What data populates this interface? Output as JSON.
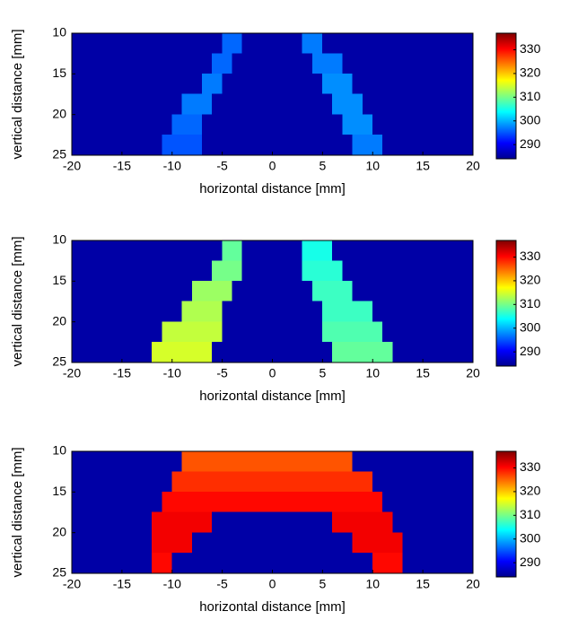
{
  "chart_data": [
    {
      "type": "heatmap",
      "colormap": "jet",
      "y_inverted": true,
      "xlabel": "horizontal distance [mm]",
      "ylabel": "vertical distance [mm]",
      "xlim": [
        -20,
        20
      ],
      "ylim": [
        10,
        25
      ],
      "xticks": [
        -20,
        -15,
        -10,
        -5,
        0,
        5,
        10,
        15,
        20
      ],
      "yticks": [
        10,
        15,
        20,
        25
      ],
      "clim": [
        284,
        337
      ],
      "cticks": [
        290,
        300,
        310,
        320,
        330
      ],
      "x": [
        -19.5,
        -18.5,
        -17.5,
        -16.5,
        -15.5,
        -14.5,
        -13.5,
        -12.5,
        -11.5,
        -10.5,
        -9.5,
        -8.5,
        -7.5,
        -6.5,
        -5.5,
        -4.5,
        -3.5,
        -2.5,
        -1.5,
        -0.5,
        0.5,
        1.5,
        2.5,
        3.5,
        4.5,
        5.5,
        6.5,
        7.5,
        8.5,
        9.5,
        10.5,
        11.5,
        12.5,
        13.5,
        14.5,
        15.5,
        16.5,
        17.5,
        18.5,
        19.5
      ],
      "y": [
        11.25,
        13.75,
        16.25,
        18.75,
        21.25,
        23.75
      ],
      "z": [
        [
          286,
          286,
          286,
          286,
          286,
          286,
          286,
          286,
          286,
          286,
          286,
          286,
          286,
          286,
          286,
          296,
          296,
          286,
          286,
          286,
          286,
          286,
          286,
          297,
          297,
          286,
          286,
          286,
          286,
          286,
          286,
          286,
          286,
          286,
          286,
          286,
          286,
          286,
          286,
          286
        ],
        [
          286,
          286,
          286,
          286,
          286,
          286,
          286,
          286,
          286,
          286,
          286,
          286,
          286,
          286,
          296,
          296,
          286,
          286,
          286,
          286,
          286,
          286,
          286,
          286,
          297,
          297,
          297,
          286,
          286,
          286,
          286,
          286,
          286,
          286,
          286,
          286,
          286,
          286,
          286,
          286
        ],
        [
          286,
          286,
          286,
          286,
          286,
          286,
          286,
          286,
          286,
          286,
          286,
          286,
          286,
          297,
          297,
          286,
          286,
          286,
          286,
          286,
          286,
          286,
          286,
          286,
          286,
          298,
          298,
          298,
          286,
          286,
          286,
          286,
          286,
          286,
          286,
          286,
          286,
          286,
          286,
          286
        ],
        [
          286,
          286,
          286,
          286,
          286,
          286,
          286,
          286,
          286,
          286,
          286,
          297,
          297,
          297,
          286,
          286,
          286,
          286,
          286,
          286,
          286,
          286,
          286,
          286,
          286,
          286,
          298,
          298,
          298,
          286,
          286,
          286,
          286,
          286,
          286,
          286,
          286,
          286,
          286,
          286
        ],
        [
          286,
          286,
          286,
          286,
          286,
          286,
          286,
          286,
          286,
          286,
          296,
          296,
          296,
          286,
          286,
          286,
          286,
          286,
          286,
          286,
          286,
          286,
          286,
          286,
          286,
          286,
          286,
          298,
          298,
          298,
          286,
          286,
          286,
          286,
          286,
          286,
          286,
          286,
          286,
          286
        ],
        [
          286,
          286,
          286,
          286,
          286,
          286,
          286,
          286,
          286,
          295,
          295,
          295,
          295,
          286,
          286,
          286,
          286,
          286,
          286,
          286,
          286,
          286,
          286,
          286,
          286,
          286,
          286,
          286,
          297,
          297,
          297,
          286,
          286,
          286,
          286,
          286,
          286,
          286,
          286,
          286
        ]
      ]
    },
    {
      "type": "heatmap",
      "colormap": "jet",
      "y_inverted": true,
      "xlabel": "horizontal distance [mm]",
      "ylabel": "vertical distance [mm]",
      "xlim": [
        -20,
        20
      ],
      "ylim": [
        10,
        25
      ],
      "xticks": [
        -20,
        -15,
        -10,
        -5,
        0,
        5,
        10,
        15,
        20
      ],
      "yticks": [
        10,
        15,
        20,
        25
      ],
      "clim": [
        284,
        337
      ],
      "cticks": [
        290,
        300,
        310,
        320,
        330
      ],
      "x": [
        -19.5,
        -18.5,
        -17.5,
        -16.5,
        -15.5,
        -14.5,
        -13.5,
        -12.5,
        -11.5,
        -10.5,
        -9.5,
        -8.5,
        -7.5,
        -6.5,
        -5.5,
        -4.5,
        -3.5,
        -2.5,
        -1.5,
        -0.5,
        0.5,
        1.5,
        2.5,
        3.5,
        4.5,
        5.5,
        6.5,
        7.5,
        8.5,
        9.5,
        10.5,
        11.5,
        12.5,
        13.5,
        14.5,
        15.5,
        16.5,
        17.5,
        18.5,
        19.5
      ],
      "y": [
        11.25,
        13.75,
        16.25,
        18.75,
        21.25,
        23.75
      ],
      "z": [
        [
          286,
          286,
          286,
          286,
          286,
          286,
          286,
          286,
          286,
          286,
          286,
          286,
          286,
          286,
          286,
          309,
          309,
          286,
          286,
          286,
          286,
          286,
          286,
          305,
          305,
          305,
          286,
          286,
          286,
          286,
          286,
          286,
          286,
          286,
          286,
          286,
          286,
          286,
          286,
          286
        ],
        [
          286,
          286,
          286,
          286,
          286,
          286,
          286,
          286,
          286,
          286,
          286,
          286,
          286,
          286,
          310,
          310,
          310,
          286,
          286,
          286,
          286,
          286,
          286,
          306,
          306,
          306,
          306,
          286,
          286,
          286,
          286,
          286,
          286,
          286,
          286,
          286,
          286,
          286,
          286,
          286
        ],
        [
          286,
          286,
          286,
          286,
          286,
          286,
          286,
          286,
          286,
          286,
          286,
          286,
          312,
          312,
          312,
          312,
          286,
          286,
          286,
          286,
          286,
          286,
          286,
          286,
          307,
          307,
          307,
          307,
          286,
          286,
          286,
          286,
          286,
          286,
          286,
          286,
          286,
          286,
          286,
          286
        ],
        [
          286,
          286,
          286,
          286,
          286,
          286,
          286,
          286,
          286,
          286,
          286,
          313,
          313,
          313,
          313,
          286,
          286,
          286,
          286,
          286,
          286,
          286,
          286,
          286,
          286,
          307,
          307,
          307,
          307,
          307,
          286,
          286,
          286,
          286,
          286,
          286,
          286,
          286,
          286,
          286
        ],
        [
          286,
          286,
          286,
          286,
          286,
          286,
          286,
          286,
          286,
          314,
          314,
          314,
          314,
          314,
          314,
          286,
          286,
          286,
          286,
          286,
          286,
          286,
          286,
          286,
          286,
          308,
          308,
          308,
          308,
          308,
          308,
          286,
          286,
          286,
          286,
          286,
          286,
          286,
          286,
          286
        ],
        [
          286,
          286,
          286,
          286,
          286,
          286,
          286,
          286,
          315,
          315,
          315,
          315,
          315,
          315,
          286,
          286,
          286,
          286,
          286,
          286,
          286,
          286,
          286,
          286,
          286,
          286,
          309,
          309,
          309,
          309,
          309,
          309,
          286,
          286,
          286,
          286,
          286,
          286,
          286,
          286
        ]
      ]
    },
    {
      "type": "heatmap",
      "colormap": "jet",
      "y_inverted": true,
      "xlabel": "horizontal distance [mm]",
      "ylabel": "vertical distance [mm]",
      "xlim": [
        -20,
        20
      ],
      "ylim": [
        10,
        25
      ],
      "xticks": [
        -20,
        -15,
        -10,
        -5,
        0,
        5,
        10,
        15,
        20
      ],
      "yticks": [
        10,
        15,
        20,
        25
      ],
      "clim": [
        284,
        337
      ],
      "cticks": [
        290,
        300,
        310,
        320,
        330
      ],
      "x": [
        -19.5,
        -18.5,
        -17.5,
        -16.5,
        -15.5,
        -14.5,
        -13.5,
        -12.5,
        -11.5,
        -10.5,
        -9.5,
        -8.5,
        -7.5,
        -6.5,
        -5.5,
        -4.5,
        -3.5,
        -2.5,
        -1.5,
        -0.5,
        0.5,
        1.5,
        2.5,
        3.5,
        4.5,
        5.5,
        6.5,
        7.5,
        8.5,
        9.5,
        10.5,
        11.5,
        12.5,
        13.5,
        14.5,
        15.5,
        16.5,
        17.5,
        18.5,
        19.5
      ],
      "y": [
        11.25,
        13.75,
        16.25,
        18.75,
        21.25,
        23.75
      ],
      "z": [
        [
          286,
          286,
          286,
          286,
          286,
          286,
          286,
          286,
          286,
          286,
          286,
          326,
          326,
          326,
          326,
          326,
          326,
          326,
          326,
          326,
          326,
          326,
          326,
          326,
          326,
          326,
          326,
          326,
          286,
          286,
          286,
          286,
          286,
          286,
          286,
          286,
          286,
          286,
          286,
          286
        ],
        [
          286,
          286,
          286,
          286,
          286,
          286,
          286,
          286,
          286,
          286,
          328,
          328,
          328,
          328,
          328,
          328,
          328,
          328,
          328,
          328,
          328,
          328,
          328,
          328,
          328,
          328,
          328,
          328,
          328,
          328,
          286,
          286,
          286,
          286,
          286,
          286,
          286,
          286,
          286,
          286
        ],
        [
          286,
          286,
          286,
          286,
          286,
          286,
          286,
          286,
          286,
          330,
          330,
          330,
          330,
          330,
          330,
          330,
          330,
          330,
          330,
          330,
          330,
          330,
          330,
          330,
          330,
          330,
          330,
          330,
          330,
          330,
          330,
          286,
          286,
          286,
          286,
          286,
          286,
          286,
          286,
          286
        ],
        [
          286,
          286,
          286,
          286,
          286,
          286,
          286,
          286,
          331,
          331,
          331,
          331,
          331,
          331,
          286,
          286,
          286,
          286,
          286,
          286,
          286,
          286,
          286,
          286,
          286,
          286,
          331,
          331,
          331,
          331,
          331,
          331,
          286,
          286,
          286,
          286,
          286,
          286,
          286,
          286
        ],
        [
          286,
          286,
          286,
          286,
          286,
          286,
          286,
          286,
          331,
          331,
          331,
          331,
          286,
          286,
          286,
          286,
          286,
          286,
          286,
          286,
          286,
          286,
          286,
          286,
          286,
          286,
          286,
          286,
          331,
          331,
          331,
          331,
          331,
          286,
          286,
          286,
          286,
          286,
          286,
          286
        ],
        [
          286,
          286,
          286,
          286,
          286,
          286,
          286,
          286,
          330,
          330,
          286,
          286,
          286,
          286,
          286,
          286,
          286,
          286,
          286,
          286,
          286,
          286,
          286,
          286,
          286,
          286,
          286,
          286,
          286,
          286,
          330,
          330,
          330,
          286,
          286,
          286,
          286,
          286,
          286,
          286
        ]
      ]
    }
  ]
}
